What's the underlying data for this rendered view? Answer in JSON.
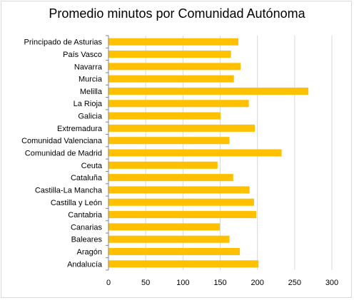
{
  "chart_data": {
    "type": "bar",
    "orientation": "horizontal",
    "title": "Promedio minutos por Comunidad Autónoma",
    "xlabel": "",
    "ylabel": "",
    "xlim": [
      0,
      300
    ],
    "xticks": [
      "0",
      "50",
      "100",
      "150",
      "200",
      "250",
      "300"
    ],
    "grid": true,
    "bar_color": "#FFC000",
    "categories": [
      "Principado de Asturias",
      "País Vasco",
      "Navarra",
      "Murcia",
      "Melilla",
      "La Rioja",
      "Galicia",
      "Extremadura",
      "Comunidad Valenciana",
      "Comunidad de Madrid",
      "Ceuta",
      "Cataluña",
      "Castilla-La Mancha",
      "Castilla y León",
      "Cantabria",
      "Canarias",
      "Baleares",
      "Aragón",
      "Andalucía"
    ],
    "values": [
      174,
      164,
      177,
      168,
      268,
      188,
      150,
      196,
      162,
      232,
      146,
      167,
      189,
      195,
      198,
      149,
      162,
      176,
      201
    ]
  }
}
